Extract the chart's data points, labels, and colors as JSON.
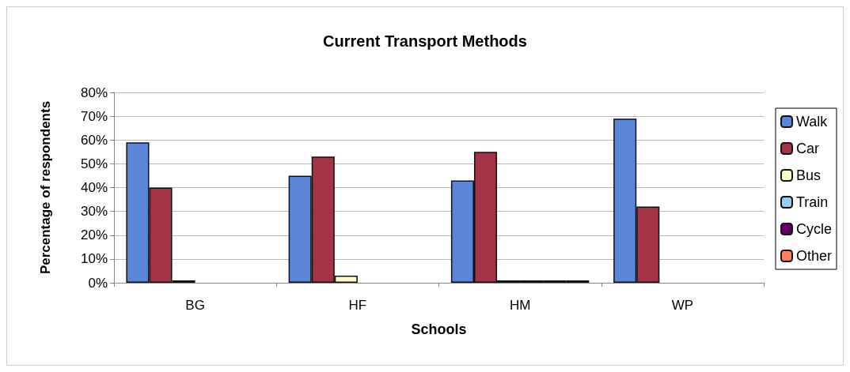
{
  "chart_data": {
    "type": "bar",
    "title": "Current Transport Methods",
    "xlabel": "Schools",
    "ylabel": "Percentage of respondents",
    "categories": [
      "BG",
      "HF",
      "HM",
      "WP"
    ],
    "series": [
      {
        "name": "Walk",
        "color": "#5b85d6",
        "values": [
          59,
          45,
          43,
          69
        ]
      },
      {
        "name": "Car",
        "color": "#a33447",
        "values": [
          40,
          53,
          55,
          32
        ]
      },
      {
        "name": "Bus",
        "color": "#ffffcc",
        "values": [
          1,
          3,
          1,
          0
        ]
      },
      {
        "name": "Train",
        "color": "#99ccee",
        "values": [
          0,
          0,
          1,
          0
        ]
      },
      {
        "name": "Cycle",
        "color": "#660066",
        "values": [
          0,
          0,
          1,
          0
        ]
      },
      {
        "name": "Other",
        "color": "#ff7f5f",
        "values": [
          0,
          0,
          1,
          0
        ]
      }
    ],
    "ylim": [
      0,
      80
    ],
    "yticks": [
      {
        "value": 0,
        "label": "0%"
      },
      {
        "value": 10,
        "label": "10%"
      },
      {
        "value": 20,
        "label": "20%"
      },
      {
        "value": 30,
        "label": "30%"
      },
      {
        "value": 40,
        "label": "40%"
      },
      {
        "value": 50,
        "label": "50%"
      },
      {
        "value": 60,
        "label": "60%"
      },
      {
        "value": 70,
        "label": "70%"
      },
      {
        "value": 80,
        "label": "80%"
      }
    ],
    "grid": "y",
    "legend": "right"
  }
}
